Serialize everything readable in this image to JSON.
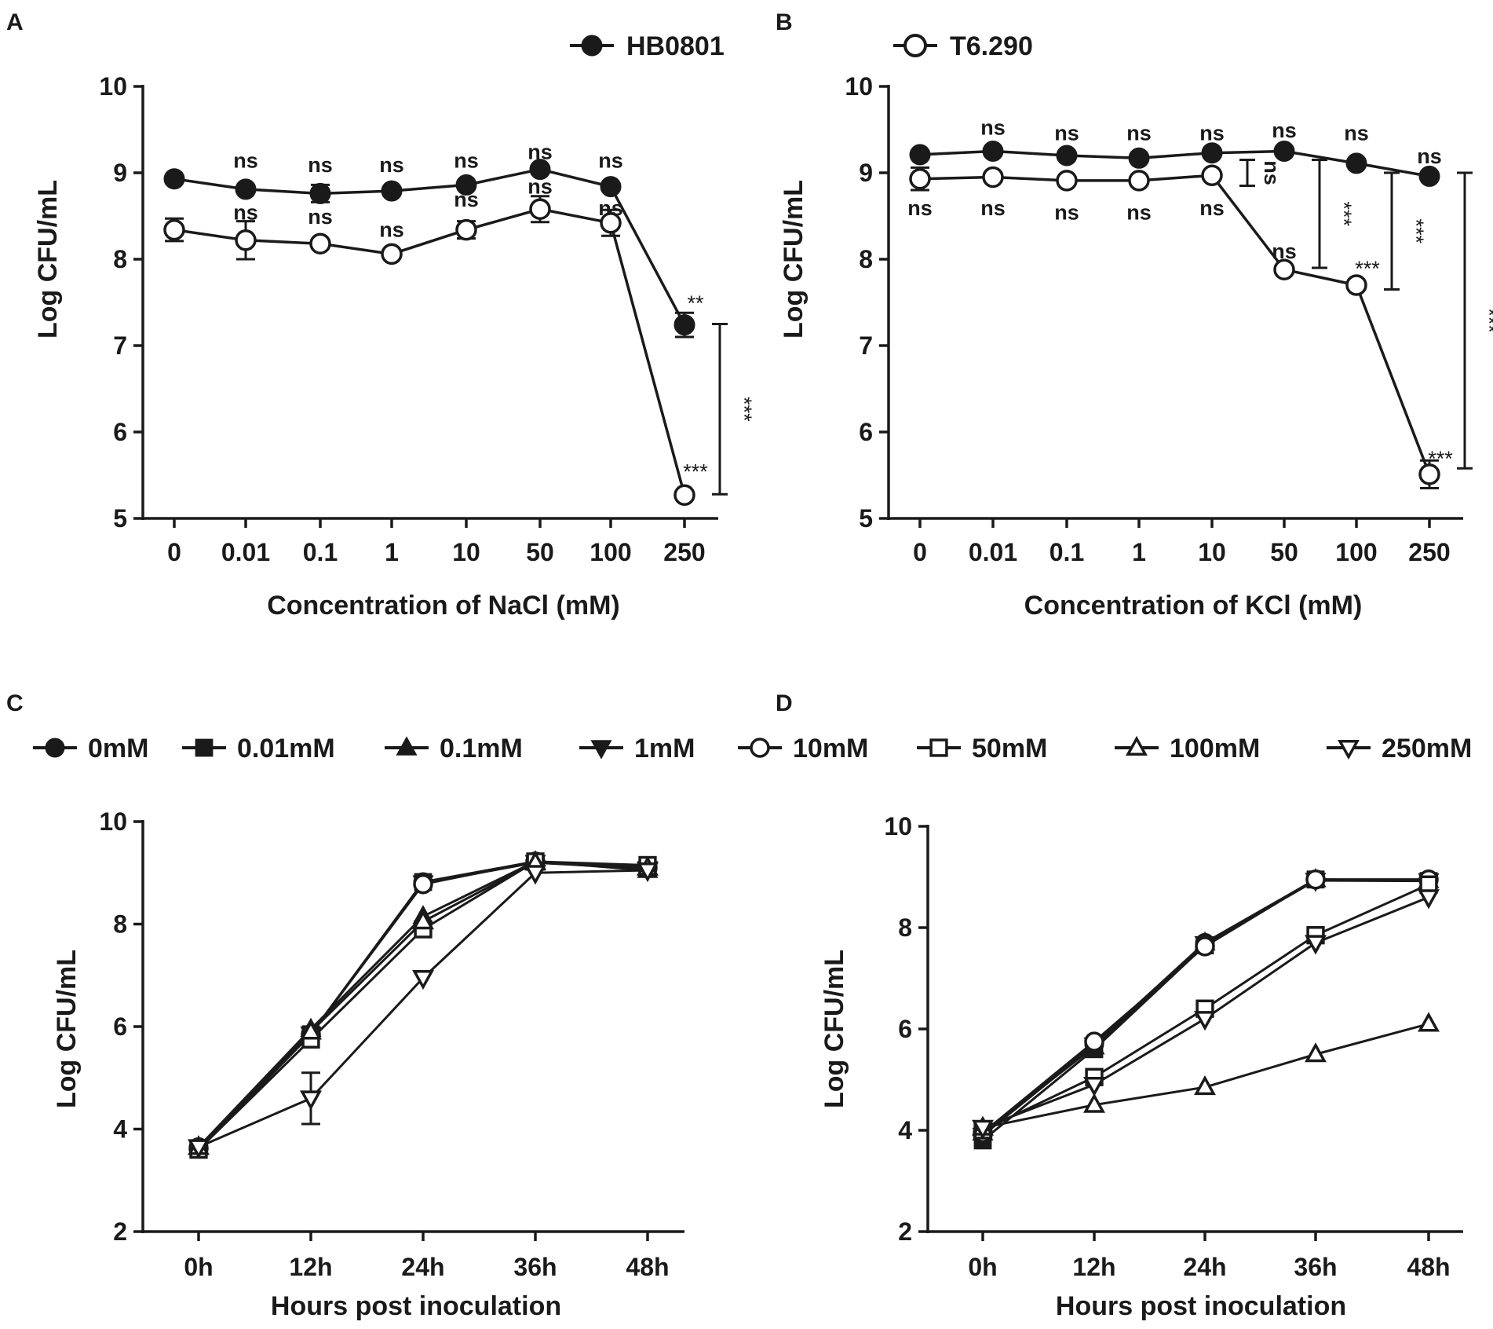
{
  "chart_data": [
    {
      "panel": "A",
      "type": "line",
      "xlabel": "Concentration of NaCl (mM)",
      "ylabel": "Log CFU/mL",
      "categories": [
        "0",
        "0.01",
        "0.1",
        "1",
        "10",
        "50",
        "100",
        "250"
      ],
      "ylim": [
        5,
        10
      ],
      "yticks": [
        5,
        6,
        7,
        8,
        9,
        10
      ],
      "series": [
        {
          "name": "HB0801",
          "marker": "filled-circle",
          "values": [
            8.93,
            8.81,
            8.76,
            8.79,
            8.86,
            9.04,
            8.84,
            7.24
          ],
          "errors": [
            0.0,
            0.0,
            0.1,
            0.0,
            0.0,
            0.0,
            0.0,
            0.14
          ]
        },
        {
          "name": "T6.290",
          "marker": "open-circle",
          "values": [
            8.34,
            8.22,
            8.18,
            8.06,
            8.34,
            8.58,
            8.42,
            5.27
          ],
          "errors": [
            0.13,
            0.22,
            0.0,
            0.0,
            0.1,
            0.15,
            0.15,
            0.0
          ]
        }
      ],
      "annotations": [
        {
          "label": "ns",
          "x": "0.01",
          "y": 9.15
        },
        {
          "label": "ns",
          "x": "0.1",
          "y": 9.1
        },
        {
          "label": "ns",
          "x": "1",
          "y": 9.1
        },
        {
          "label": "ns",
          "x": "10",
          "y": 9.15
        },
        {
          "label": "ns",
          "x": "50",
          "y": 9.25
        },
        {
          "label": "ns",
          "x": "100",
          "y": 9.15
        },
        {
          "label": "ns",
          "x": "0.01",
          "y": 8.55
        },
        {
          "label": "ns",
          "x": "0.1",
          "y": 8.5
        },
        {
          "label": "ns",
          "x": "1",
          "y": 8.35
        },
        {
          "label": "ns",
          "x": "10",
          "y": 8.7
        },
        {
          "label": "ns",
          "x": "50",
          "y": 8.85
        },
        {
          "label": "ns",
          "x": "100",
          "y": 8.6
        },
        {
          "label": "**",
          "x": "250",
          "y": 7.5
        },
        {
          "label": "***",
          "x": "250",
          "y": 5.55
        }
      ],
      "brackets": [
        {
          "label": "***",
          "x": "250",
          "from": 5.28,
          "to": 7.25
        }
      ]
    },
    {
      "panel": "B",
      "type": "line",
      "xlabel": "Concentration of KCl (mM)",
      "ylabel": "Log CFU/mL",
      "categories": [
        "0",
        "0.01",
        "0.1",
        "1",
        "10",
        "50",
        "100",
        "250"
      ],
      "ylim": [
        5,
        10
      ],
      "yticks": [
        5,
        6,
        7,
        8,
        9,
        10
      ],
      "series": [
        {
          "name": "HB0801",
          "marker": "filled-circle",
          "values": [
            9.21,
            9.25,
            9.2,
            9.17,
            9.23,
            9.25,
            9.11,
            8.96
          ],
          "errors": [
            0,
            0,
            0,
            0,
            0,
            0,
            0,
            0
          ]
        },
        {
          "name": "T6.290",
          "marker": "open-circle",
          "values": [
            8.93,
            8.95,
            8.91,
            8.91,
            8.97,
            7.88,
            7.7,
            5.51
          ],
          "errors": [
            0.13,
            0,
            0,
            0,
            0,
            0,
            0,
            0.16
          ]
        }
      ],
      "annotations": [
        {
          "label": "ns",
          "x": "0.01",
          "y": 9.53
        },
        {
          "label": "ns",
          "x": "0.1",
          "y": 9.47
        },
        {
          "label": "ns",
          "x": "1",
          "y": 9.47
        },
        {
          "label": "ns",
          "x": "10",
          "y": 9.47
        },
        {
          "label": "ns",
          "x": "50",
          "y": 9.5
        },
        {
          "label": "ns",
          "x": "100",
          "y": 9.47
        },
        {
          "label": "ns",
          "x": "250",
          "y": 9.2
        },
        {
          "label": "ns",
          "x": "0",
          "y": 8.6
        },
        {
          "label": "ns",
          "x": "0.01",
          "y": 8.6
        },
        {
          "label": "ns",
          "x": "0.1",
          "y": 8.55
        },
        {
          "label": "ns",
          "x": "1",
          "y": 8.55
        },
        {
          "label": "ns",
          "x": "10",
          "y": 8.6
        },
        {
          "label": "ns",
          "x": "50",
          "y": 8.1
        },
        {
          "label": "***",
          "x": "100",
          "y": 7.9
        },
        {
          "label": "***",
          "x": "250",
          "y": 5.7
        }
      ],
      "brackets": [
        {
          "label": "ns",
          "x": "10",
          "from": 8.85,
          "to": 9.15
        },
        {
          "label": "***",
          "x": "50",
          "from": 7.9,
          "to": 9.15
        },
        {
          "label": "***",
          "x": "100",
          "from": 7.65,
          "to": 9.0
        },
        {
          "label": "***",
          "x": "250",
          "from": 5.58,
          "to": 9.0
        }
      ]
    },
    {
      "panel": "C",
      "type": "line",
      "xlabel": "Hours post inoculation",
      "ylabel": "Log CFU/mL",
      "categories": [
        "0h",
        "12h",
        "24h",
        "36h",
        "48h"
      ],
      "ylim": [
        2,
        10
      ],
      "yticks": [
        2,
        4,
        6,
        8,
        10
      ],
      "series": [
        {
          "name": "0mM",
          "marker": "filled-circle",
          "values": [
            3.65,
            5.85,
            8.82,
            9.22,
            9.1
          ]
        },
        {
          "name": "0.01mM",
          "marker": "filled-square",
          "values": [
            3.6,
            5.85,
            8.82,
            9.22,
            9.12
          ]
        },
        {
          "name": "0.1mM",
          "marker": "filled-triangle-up",
          "values": [
            3.65,
            5.95,
            8.15,
            9.22,
            9.05
          ]
        },
        {
          "name": "1mM",
          "marker": "filled-triangle-down",
          "values": [
            3.65,
            5.85,
            8.8,
            9.2,
            9.08
          ]
        },
        {
          "name": "10mM",
          "marker": "open-circle",
          "values": [
            3.62,
            5.85,
            8.78,
            9.22,
            9.1
          ]
        },
        {
          "name": "50mM",
          "marker": "open-square",
          "values": [
            3.6,
            5.75,
            7.9,
            9.22,
            9.15
          ]
        },
        {
          "name": "100mM",
          "marker": "open-triangle-up",
          "values": [
            3.65,
            5.9,
            8.05,
            9.2,
            9.1
          ]
        },
        {
          "name": "250mM",
          "marker": "open-triangle-down",
          "values": [
            3.65,
            4.6,
            6.95,
            9.0,
            9.05
          ],
          "errors": [
            0,
            0.5,
            0,
            0,
            0
          ]
        }
      ]
    },
    {
      "panel": "D",
      "type": "line",
      "xlabel": "Hours post inoculation",
      "ylabel": "Log CFU/mL",
      "categories": [
        "0h",
        "12h",
        "24h",
        "36h",
        "48h"
      ],
      "ylim": [
        2,
        10
      ],
      "yticks": [
        2,
        4,
        6,
        8,
        10
      ],
      "series": [
        {
          "name": "0mM",
          "marker": "filled-circle",
          "values": [
            3.9,
            5.7,
            7.7,
            8.95,
            8.95
          ]
        },
        {
          "name": "0.01mM",
          "marker": "filled-square",
          "values": [
            3.8,
            5.6,
            7.65,
            8.95,
            8.92
          ]
        },
        {
          "name": "0.1mM",
          "marker": "filled-triangle-up",
          "values": [
            3.95,
            5.65,
            7.7,
            8.95,
            8.93
          ]
        },
        {
          "name": "1mM",
          "marker": "filled-triangle-down",
          "values": [
            3.9,
            5.68,
            7.68,
            8.93,
            8.92
          ]
        },
        {
          "name": "10mM",
          "marker": "open-circle",
          "values": [
            3.95,
            5.75,
            7.63,
            8.95,
            8.95
          ]
        },
        {
          "name": "50mM",
          "marker": "open-square",
          "values": [
            4.0,
            5.05,
            6.4,
            7.85,
            8.85
          ]
        },
        {
          "name": "100mM",
          "marker": "open-triangle-up",
          "values": [
            4.05,
            4.5,
            4.85,
            5.5,
            6.1
          ]
        },
        {
          "name": "250mM",
          "marker": "open-triangle-down",
          "values": [
            4.05,
            4.9,
            6.2,
            7.7,
            8.6
          ]
        }
      ]
    }
  ]
}
